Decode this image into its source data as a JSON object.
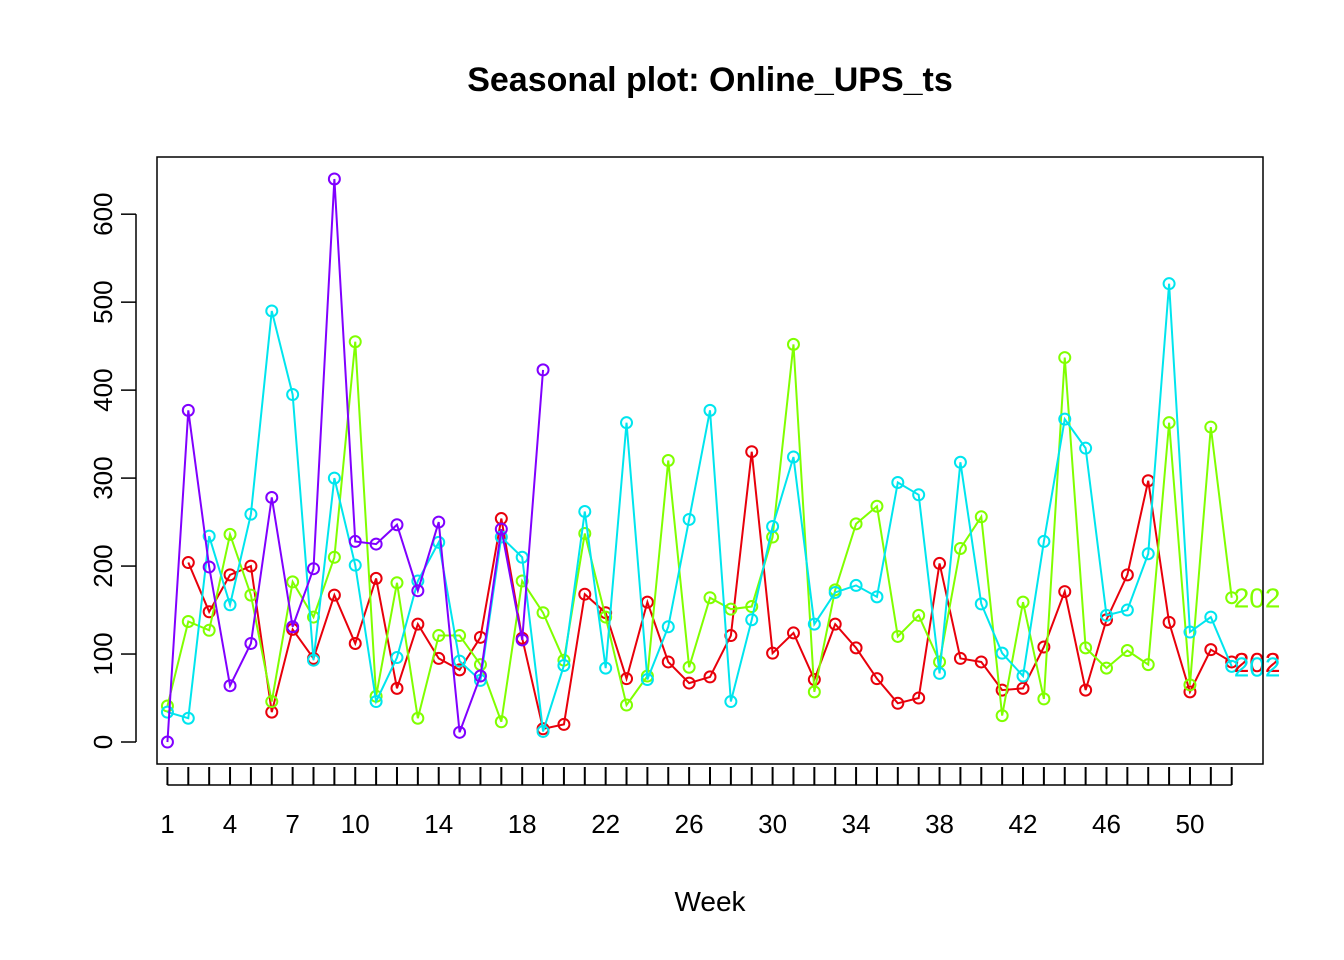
{
  "chart_data": {
    "type": "line",
    "title": "Seasonal plot: Online_UPS_ts",
    "xlabel": "Week",
    "ylabel": "",
    "xlim": [
      0.5,
      53.5
    ],
    "ylim": [
      -25,
      665
    ],
    "x_tick_labels": [
      1,
      4,
      7,
      10,
      14,
      18,
      22,
      26,
      30,
      34,
      38,
      42,
      46,
      50
    ],
    "y_ticks": [
      0,
      100,
      200,
      300,
      400,
      500,
      600
    ],
    "grid": false,
    "legend": "none",
    "series": [
      {
        "color": "#E8000B",
        "end_label": "202",
        "values": [
          null,
          204,
          148,
          190,
          200,
          34,
          128,
          95,
          167,
          112,
          186,
          61,
          134,
          95,
          82,
          119,
          254,
          118,
          15,
          20,
          168,
          147,
          72,
          159,
          91,
          67,
          74,
          121,
          330,
          101,
          124,
          71,
          134,
          107,
          72,
          44,
          50,
          203,
          95,
          91,
          59,
          61,
          108,
          171,
          59,
          139,
          190,
          297,
          136,
          57,
          105,
          91
        ]
      },
      {
        "color": "#80FF00",
        "end_label": "202",
        "values": [
          41,
          137,
          127,
          236,
          167,
          46,
          182,
          142,
          210,
          455,
          52,
          181,
          27,
          121,
          121,
          88,
          23,
          183,
          147,
          93,
          237,
          142,
          42,
          75,
          320,
          85,
          164,
          151,
          154,
          233,
          452,
          57,
          173,
          248,
          268,
          120,
          144,
          91,
          220,
          256,
          30,
          159,
          49,
          437,
          107,
          84,
          104,
          88,
          363,
          65,
          358,
          164
        ]
      },
      {
        "color": "#00E5EE",
        "end_label": "202",
        "values": [
          34,
          27,
          234,
          156,
          259,
          490,
          395,
          93,
          300,
          201,
          46,
          96,
          183,
          227,
          92,
          70,
          233,
          210,
          12,
          87,
          262,
          84,
          363,
          71,
          131,
          253,
          377,
          46,
          139,
          245,
          324,
          134,
          170,
          178,
          165,
          295,
          281,
          78,
          318,
          157,
          101,
          75,
          228,
          367,
          334,
          144,
          150,
          214,
          521,
          125,
          142,
          86
        ]
      },
      {
        "color": "#8000FF",
        "values": [
          0,
          377,
          199,
          64,
          112,
          278,
          131,
          197,
          640,
          228,
          225,
          247,
          172,
          250,
          11,
          75,
          242,
          116,
          423
        ]
      }
    ]
  }
}
